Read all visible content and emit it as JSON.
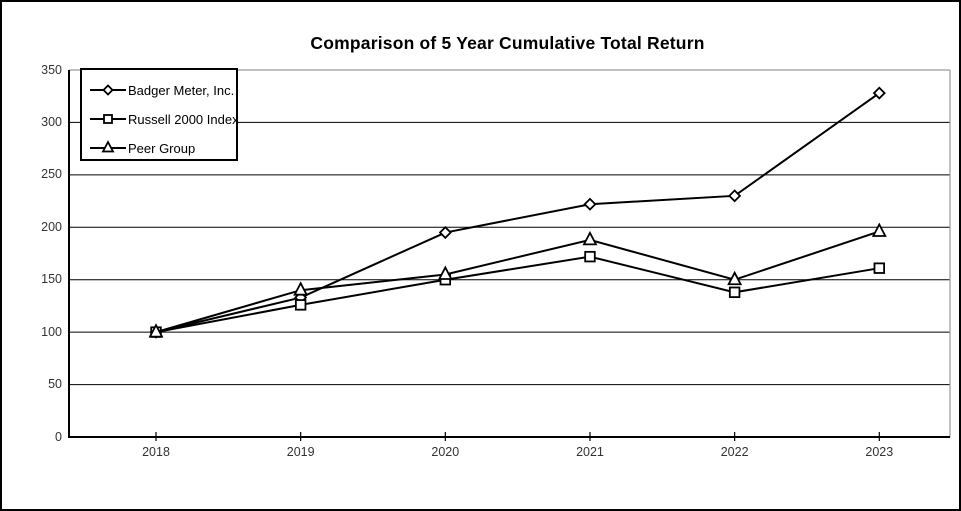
{
  "chart_data": {
    "type": "line",
    "title": "Comparison of 5 Year Cumulative Total Return",
    "categories": [
      "2018",
      "2019",
      "2020",
      "2021",
      "2022",
      "2023"
    ],
    "series": [
      {
        "name": "Badger Meter, Inc.",
        "marker": "diamond",
        "values": [
          100,
          133,
          195,
          222,
          230,
          328
        ]
      },
      {
        "name": "Russell 2000 Index",
        "marker": "square",
        "values": [
          100,
          126,
          150,
          172,
          138,
          161
        ]
      },
      {
        "name": "Peer Group",
        "marker": "triangle",
        "values": [
          100,
          140,
          155,
          188,
          150,
          196
        ]
      }
    ],
    "ylim": [
      0,
      350
    ],
    "yticks": [
      0,
      50,
      100,
      150,
      200,
      250,
      300,
      350
    ],
    "xlabel": "",
    "ylabel": "",
    "grid": "horizontal",
    "legend_position": "top-left-inside",
    "colors": {
      "line": "#000000",
      "marker_fill": "#ffffff",
      "gridline": "#000000",
      "plot_border": "#999999",
      "axis": "#000000",
      "tick_text": "#333333",
      "background": "#ffffff"
    }
  }
}
